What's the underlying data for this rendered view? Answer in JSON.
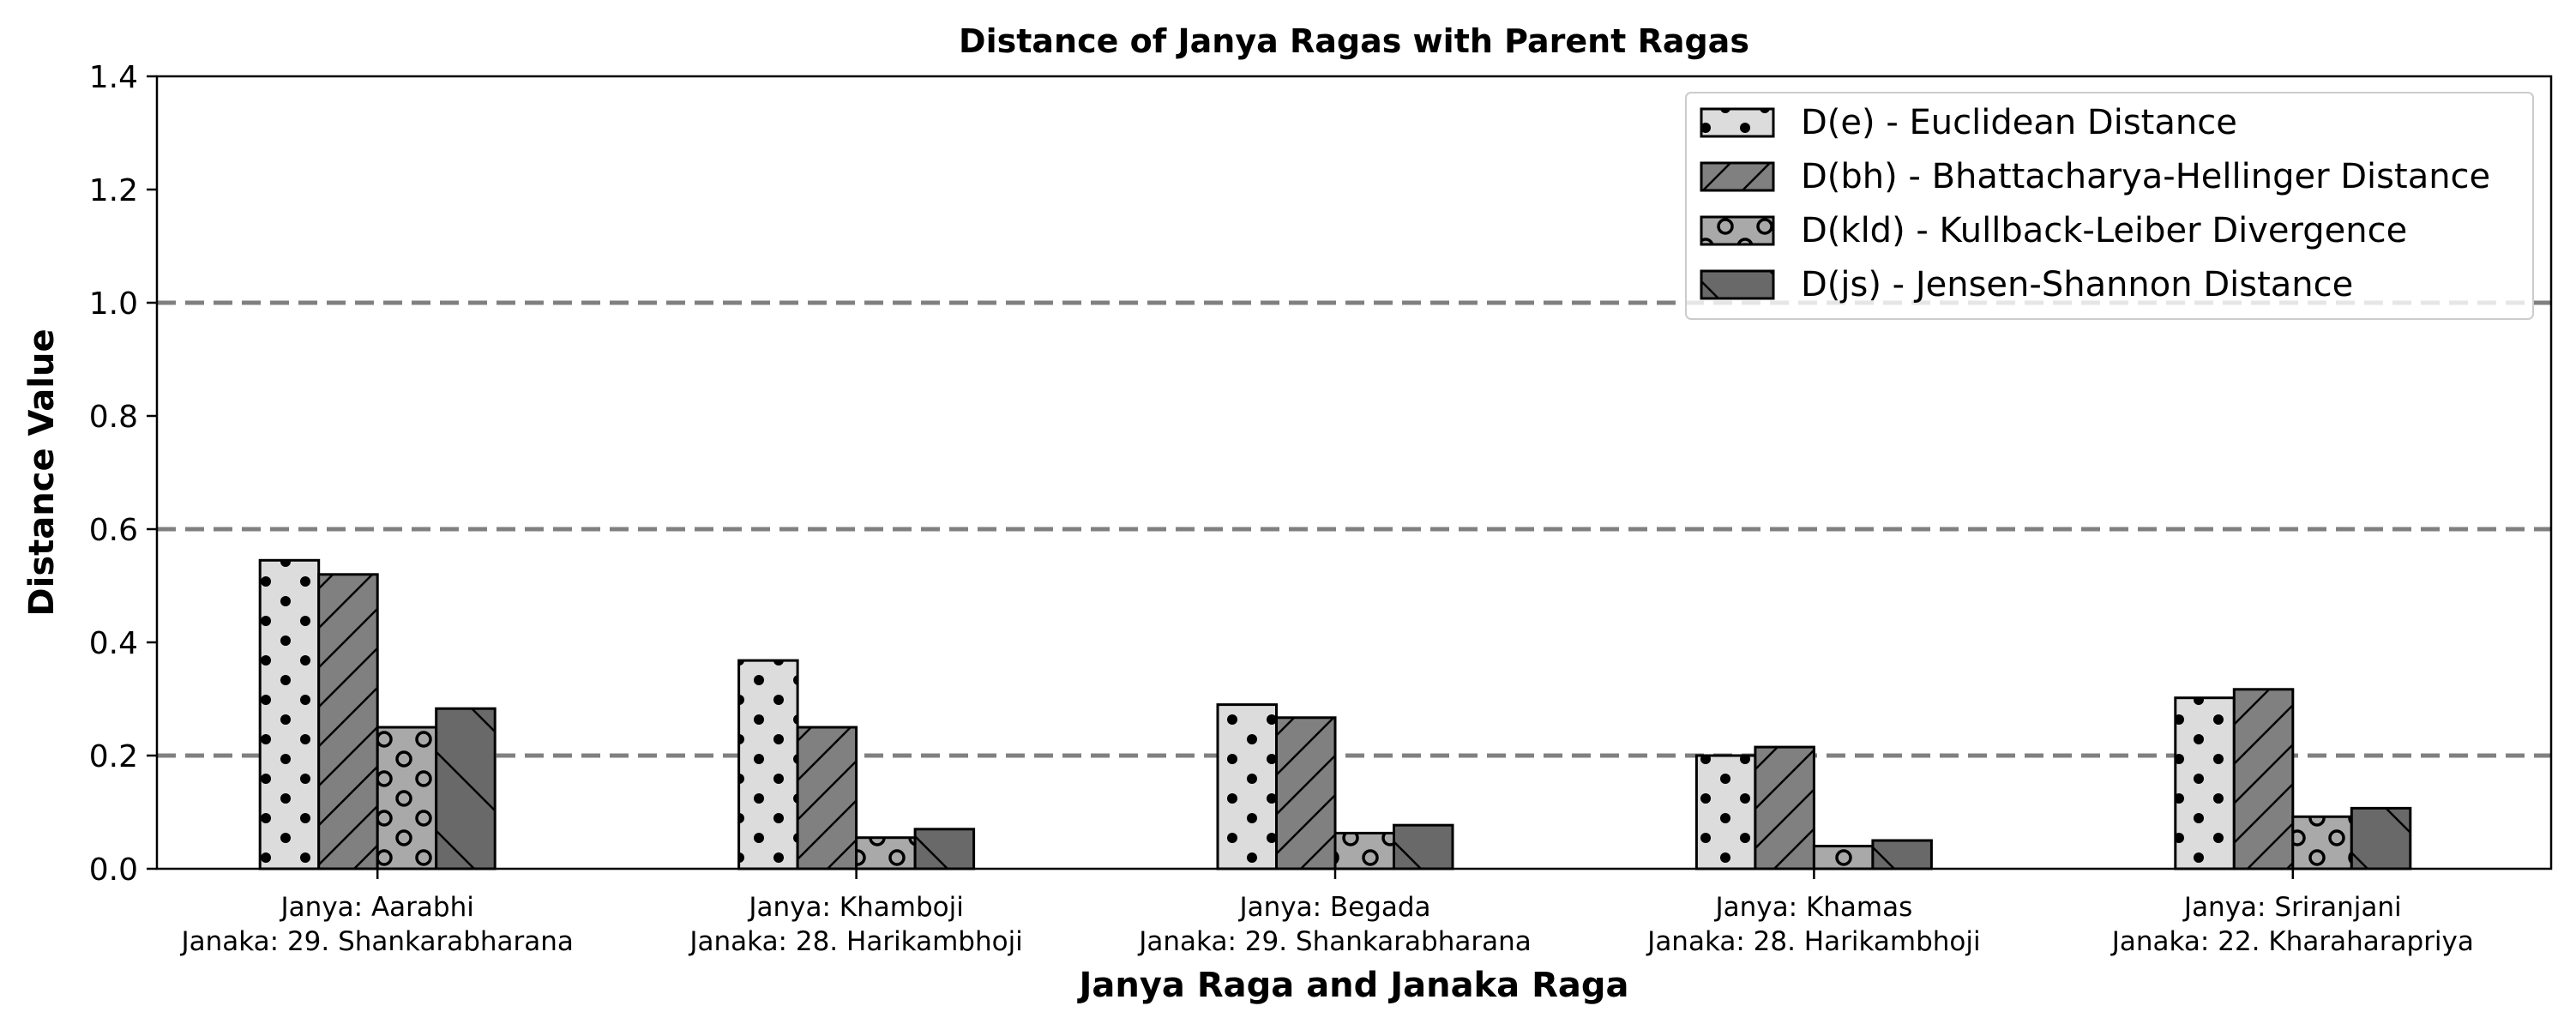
{
  "chart_data": {
    "type": "bar",
    "title": "Distance of Janya Ragas with Parent Ragas",
    "xlabel": "Janya Raga and Janaka Raga",
    "ylabel": "Distance Value",
    "ylim": [
      0,
      1.4
    ],
    "yticks": [
      "0.0",
      "0.2",
      "0.4",
      "0.6",
      "0.8",
      "1.0",
      "1.2",
      "1.4"
    ],
    "reference_lines": [
      0.2,
      0.6,
      1.0
    ],
    "grid": false,
    "legend_position": "top-right",
    "categories": [
      [
        "Janya: Aarabhi",
        "Janaka: 29. Shankarabharana"
      ],
      [
        "Janya: Khamboji",
        "Janaka: 28. Harikambhoji"
      ],
      [
        "Janya: Begada",
        "Janaka: 29. Shankarabharana"
      ],
      [
        "Janya: Khamas",
        "Janaka: 28. Harikambhoji"
      ],
      [
        "Janya: Sriranjani",
        "Janaka: 22. Kharaharapriya"
      ]
    ],
    "series": [
      {
        "name": "D(e) - Euclidean Distance",
        "values": [
          0.545,
          0.368,
          0.29,
          0.2,
          0.302
        ],
        "color": "#dcdcdc",
        "hatch": "dots"
      },
      {
        "name": "D(bh) - Bhattacharya-Hellinger Distance",
        "values": [
          0.52,
          0.25,
          0.267,
          0.215,
          0.317
        ],
        "color": "#808080",
        "hatch": "forward-slash"
      },
      {
        "name": "D(kld) - Kullback-Leiber Divergence",
        "values": [
          0.25,
          0.055,
          0.063,
          0.04,
          0.092
        ],
        "color": "#a9a9a9",
        "hatch": "circles"
      },
      {
        "name": "D(js) - Jensen-Shannon Distance",
        "values": [
          0.283,
          0.07,
          0.077,
          0.05,
          0.107
        ],
        "color": "#696969",
        "hatch": "back-slash"
      }
    ]
  }
}
